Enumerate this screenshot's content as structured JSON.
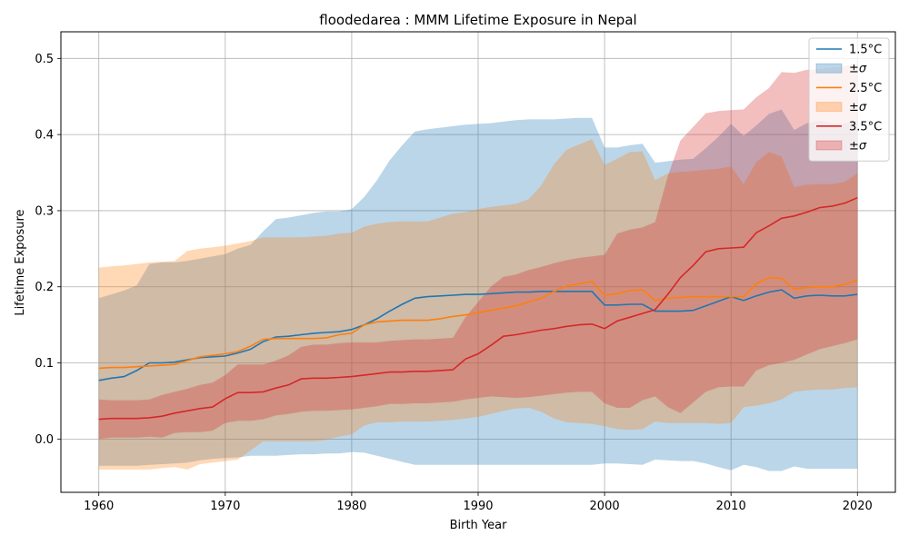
{
  "chart_data": {
    "type": "line",
    "title": "floodedarea : MMM Lifetime Exposure in Nepal",
    "xlabel": "Birth Year",
    "ylabel": "Lifetime Exposure",
    "xlim": [
      1957,
      2023
    ],
    "ylim": [
      -0.07,
      0.535
    ],
    "xticks": [
      1960,
      1970,
      1980,
      1990,
      2000,
      2010,
      2020
    ],
    "yticks": [
      0.0,
      0.1,
      0.2,
      0.3,
      0.4,
      0.5
    ],
    "ytick_labels": [
      "0.0",
      "0.1",
      "0.2",
      "0.3",
      "0.4",
      "0.5"
    ],
    "grid": true,
    "legend_position": "top-right",
    "x": [
      1960,
      1961,
      1962,
      1963,
      1964,
      1965,
      1966,
      1967,
      1968,
      1969,
      1970,
      1971,
      1972,
      1973,
      1974,
      1975,
      1976,
      1977,
      1978,
      1979,
      1980,
      1981,
      1982,
      1983,
      1984,
      1985,
      1986,
      1987,
      1988,
      1989,
      1990,
      1991,
      1992,
      1993,
      1994,
      1995,
      1996,
      1997,
      1998,
      1999,
      2000,
      2001,
      2002,
      2003,
      2004,
      2005,
      2006,
      2007,
      2008,
      2009,
      2010,
      2011,
      2012,
      2013,
      2014,
      2015,
      2016,
      2017,
      2018,
      2019,
      2020
    ],
    "series": [
      {
        "name": "1.5°C",
        "band_name": "±σ",
        "color": "#1f77b4",
        "mean": [
          0.077,
          0.08,
          0.082,
          0.09,
          0.1,
          0.1,
          0.101,
          0.104,
          0.107,
          0.108,
          0.109,
          0.113,
          0.118,
          0.128,
          0.134,
          0.135,
          0.137,
          0.139,
          0.14,
          0.141,
          0.144,
          0.15,
          0.158,
          0.168,
          0.177,
          0.185,
          0.187,
          0.188,
          0.189,
          0.19,
          0.19,
          0.191,
          0.192,
          0.193,
          0.193,
          0.194,
          0.194,
          0.194,
          0.194,
          0.194,
          0.176,
          0.176,
          0.177,
          0.177,
          0.168,
          0.168,
          0.168,
          0.169,
          0.175,
          0.181,
          0.187,
          0.182,
          0.188,
          0.193,
          0.196,
          0.185,
          0.188,
          0.189,
          0.188,
          0.188,
          0.19
        ],
        "upper": [
          0.185,
          0.19,
          0.195,
          0.202,
          0.23,
          0.232,
          0.232,
          0.234,
          0.237,
          0.24,
          0.243,
          0.25,
          0.255,
          0.273,
          0.289,
          0.291,
          0.294,
          0.297,
          0.299,
          0.299,
          0.302,
          0.318,
          0.34,
          0.366,
          0.386,
          0.404,
          0.407,
          0.409,
          0.411,
          0.413,
          0.414,
          0.415,
          0.417,
          0.419,
          0.42,
          0.42,
          0.42,
          0.421,
          0.422,
          0.422,
          0.383,
          0.383,
          0.386,
          0.388,
          0.363,
          0.365,
          0.367,
          0.368,
          0.382,
          0.397,
          0.414,
          0.398,
          0.412,
          0.427,
          0.433,
          0.406,
          0.415,
          0.418,
          0.415,
          0.415,
          0.418
        ],
        "lower": [
          -0.035,
          -0.035,
          -0.035,
          -0.035,
          -0.034,
          -0.033,
          -0.032,
          -0.031,
          -0.028,
          -0.026,
          -0.025,
          -0.024,
          -0.022,
          -0.022,
          -0.022,
          -0.021,
          -0.02,
          -0.02,
          -0.019,
          -0.019,
          -0.017,
          -0.018,
          -0.022,
          -0.026,
          -0.03,
          -0.034,
          -0.034,
          -0.034,
          -0.034,
          -0.034,
          -0.034,
          -0.034,
          -0.034,
          -0.034,
          -0.034,
          -0.034,
          -0.034,
          -0.034,
          -0.034,
          -0.034,
          -0.032,
          -0.032,
          -0.033,
          -0.034,
          -0.027,
          -0.028,
          -0.029,
          -0.029,
          -0.032,
          -0.037,
          -0.041,
          -0.034,
          -0.037,
          -0.042,
          -0.042,
          -0.036,
          -0.039,
          -0.039,
          -0.039,
          -0.039,
          -0.039
        ]
      },
      {
        "name": "2.5°C",
        "band_name": "±σ",
        "color": "#ff7f0e",
        "mean": [
          0.093,
          0.094,
          0.094,
          0.095,
          0.096,
          0.097,
          0.098,
          0.103,
          0.108,
          0.11,
          0.112,
          0.115,
          0.122,
          0.131,
          0.132,
          0.132,
          0.132,
          0.132,
          0.133,
          0.137,
          0.139,
          0.15,
          0.154,
          0.155,
          0.156,
          0.156,
          0.156,
          0.158,
          0.161,
          0.163,
          0.166,
          0.169,
          0.172,
          0.175,
          0.18,
          0.185,
          0.194,
          0.201,
          0.204,
          0.207,
          0.189,
          0.191,
          0.195,
          0.196,
          0.182,
          0.185,
          0.186,
          0.187,
          0.187,
          0.187,
          0.187,
          0.187,
          0.204,
          0.212,
          0.211,
          0.197,
          0.199,
          0.2,
          0.2,
          0.203,
          0.209
        ],
        "upper": [
          0.225,
          0.227,
          0.228,
          0.23,
          0.232,
          0.233,
          0.234,
          0.247,
          0.25,
          0.252,
          0.254,
          0.257,
          0.26,
          0.265,
          0.265,
          0.265,
          0.265,
          0.266,
          0.267,
          0.27,
          0.271,
          0.279,
          0.283,
          0.285,
          0.286,
          0.286,
          0.286,
          0.291,
          0.296,
          0.298,
          0.302,
          0.305,
          0.307,
          0.309,
          0.315,
          0.333,
          0.361,
          0.38,
          0.387,
          0.394,
          0.36,
          0.368,
          0.377,
          0.378,
          0.34,
          0.349,
          0.351,
          0.352,
          0.354,
          0.355,
          0.358,
          0.335,
          0.364,
          0.377,
          0.371,
          0.331,
          0.334,
          0.335,
          0.335,
          0.338,
          0.349
        ],
        "lower": [
          -0.04,
          -0.04,
          -0.04,
          -0.04,
          -0.04,
          -0.038,
          -0.037,
          -0.04,
          -0.033,
          -0.031,
          -0.029,
          -0.027,
          -0.015,
          -0.003,
          -0.003,
          -0.003,
          -0.003,
          -0.003,
          -0.001,
          0.003,
          0.006,
          0.018,
          0.022,
          0.022,
          0.023,
          0.023,
          0.023,
          0.024,
          0.025,
          0.027,
          0.029,
          0.033,
          0.037,
          0.04,
          0.041,
          0.036,
          0.027,
          0.022,
          0.021,
          0.02,
          0.017,
          0.013,
          0.012,
          0.013,
          0.023,
          0.021,
          0.021,
          0.021,
          0.021,
          0.02,
          0.021,
          0.042,
          0.044,
          0.047,
          0.052,
          0.062,
          0.064,
          0.065,
          0.065,
          0.067,
          0.068
        ]
      },
      {
        "name": "3.5°C",
        "band_name": "±σ",
        "color": "#d62728",
        "mean": [
          0.026,
          0.027,
          0.027,
          0.027,
          0.028,
          0.03,
          0.034,
          0.037,
          0.04,
          0.042,
          0.053,
          0.061,
          0.061,
          0.062,
          0.067,
          0.071,
          0.079,
          0.08,
          0.08,
          0.081,
          0.082,
          0.084,
          0.086,
          0.088,
          0.088,
          0.089,
          0.089,
          0.09,
          0.091,
          0.105,
          0.112,
          0.123,
          0.135,
          0.137,
          0.14,
          0.143,
          0.145,
          0.148,
          0.15,
          0.151,
          0.145,
          0.155,
          0.16,
          0.165,
          0.17,
          0.19,
          0.212,
          0.228,
          0.246,
          0.25,
          0.251,
          0.252,
          0.271,
          0.28,
          0.29,
          0.293,
          0.298,
          0.304,
          0.306,
          0.31,
          0.317
        ],
        "upper": [
          0.052,
          0.051,
          0.051,
          0.051,
          0.052,
          0.058,
          0.062,
          0.066,
          0.071,
          0.074,
          0.084,
          0.098,
          0.098,
          0.098,
          0.103,
          0.11,
          0.121,
          0.124,
          0.124,
          0.126,
          0.127,
          0.127,
          0.127,
          0.129,
          0.13,
          0.131,
          0.131,
          0.132,
          0.133,
          0.16,
          0.18,
          0.2,
          0.213,
          0.216,
          0.222,
          0.226,
          0.231,
          0.235,
          0.238,
          0.24,
          0.242,
          0.27,
          0.275,
          0.278,
          0.285,
          0.345,
          0.392,
          0.41,
          0.428,
          0.431,
          0.432,
          0.433,
          0.449,
          0.461,
          0.482,
          0.481,
          0.485,
          0.486,
          0.488,
          0.49,
          0.494
        ],
        "lower": [
          0.0,
          0.002,
          0.002,
          0.002,
          0.003,
          0.002,
          0.008,
          0.009,
          0.009,
          0.011,
          0.021,
          0.024,
          0.024,
          0.026,
          0.031,
          0.033,
          0.036,
          0.037,
          0.037,
          0.038,
          0.039,
          0.041,
          0.043,
          0.046,
          0.046,
          0.047,
          0.047,
          0.048,
          0.049,
          0.052,
          0.054,
          0.056,
          0.055,
          0.054,
          0.055,
          0.057,
          0.059,
          0.061,
          0.062,
          0.062,
          0.047,
          0.041,
          0.041,
          0.051,
          0.056,
          0.042,
          0.034,
          0.048,
          0.062,
          0.068,
          0.069,
          0.069,
          0.09,
          0.097,
          0.1,
          0.104,
          0.111,
          0.118,
          0.122,
          0.126,
          0.131
        ]
      }
    ]
  }
}
